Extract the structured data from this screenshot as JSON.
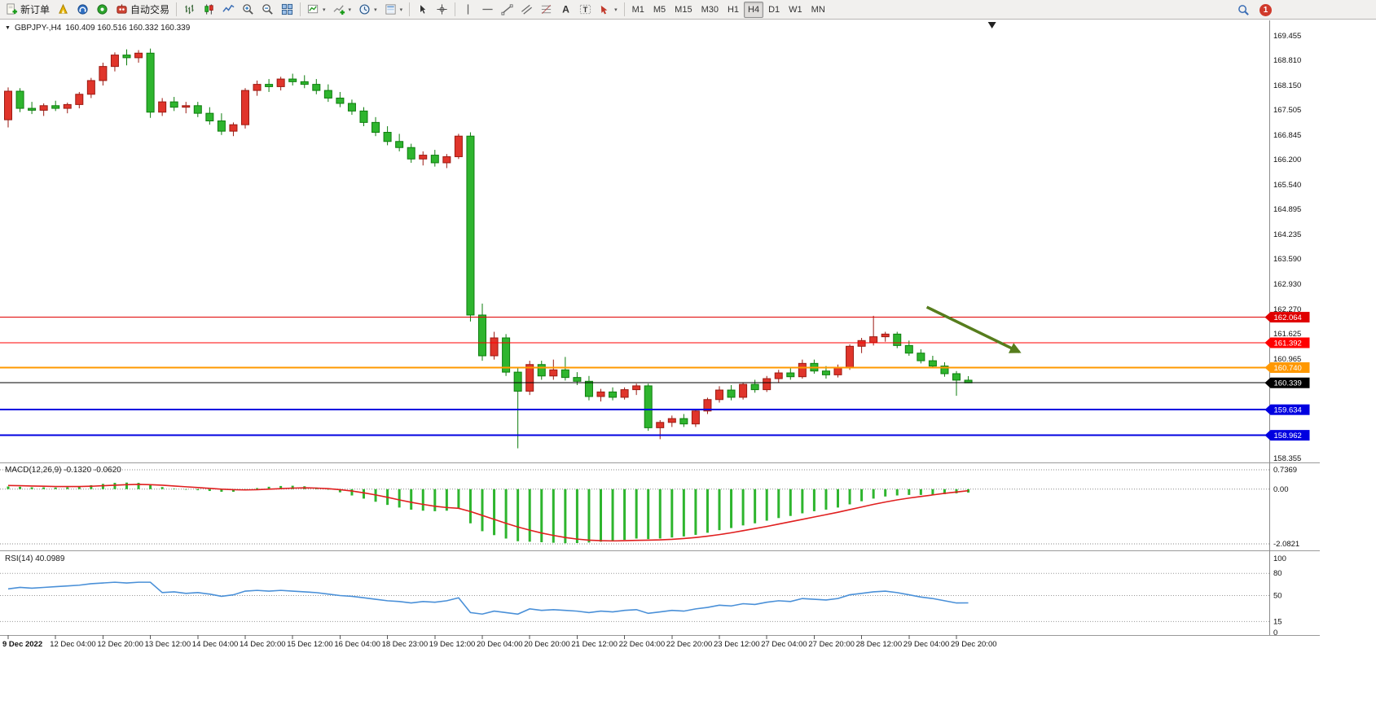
{
  "toolbar": {
    "new_order_label": "新订单",
    "auto_trading_label": "自动交易",
    "timeframes": [
      "M1",
      "M5",
      "M15",
      "M30",
      "H1",
      "H4",
      "D1",
      "W1",
      "MN"
    ],
    "active_timeframe": "H4",
    "notification_badge": "1"
  },
  "chart_header": {
    "collapse_icon": "▼",
    "symbol": "GBPJPY-,H4",
    "ohlc": "160.409 160.516 160.332 160.339"
  },
  "chart_data": {
    "type": "candlestick",
    "symbol": "GBPJPY",
    "timeframe": "H4",
    "colors": {
      "bull": "#e0352b",
      "bull_border": "#9b1a12",
      "bear": "#2eb52e",
      "bear_border": "#0e7d0e",
      "macd_hist": "#2eb52e",
      "macd_signal": "#e01f1f",
      "rsi_line": "#4a90d8",
      "arrow": "#567d1d"
    },
    "price_axis": {
      "min": 158.355,
      "max": 169.455,
      "labels": [
        "169.455",
        "168.810",
        "168.150",
        "167.505",
        "166.845",
        "166.200",
        "165.540",
        "164.895",
        "164.235",
        "163.590",
        "162.930",
        "162.270",
        "161.625",
        "160.965",
        "158.355"
      ]
    },
    "hlines": [
      {
        "price": 162.064,
        "label": "162.064",
        "color": "#e00000",
        "width": 1
      },
      {
        "price": 161.392,
        "label": "161.392",
        "color": "#ff0000",
        "width": 1
      },
      {
        "price": 160.74,
        "label": "160.740",
        "color": "#ff9800",
        "width": 2
      },
      {
        "price": 160.339,
        "label": "160.339",
        "color": "#000000",
        "width": 1,
        "type": "bid"
      },
      {
        "price": 159.634,
        "label": "159.634",
        "color": "#0000e0",
        "width": 2
      },
      {
        "price": 158.962,
        "label": "158.962",
        "color": "#0000e0",
        "width": 2
      }
    ],
    "x_label_step": 4,
    "x_labels": [
      "9 Dec 2022",
      "12 Dec 04:00",
      "12 Dec 20:00",
      "13 Dec 12:00",
      "14 Dec 04:00",
      "14 Dec 20:00",
      "15 Dec 12:00",
      "16 Dec 04:00",
      "18 Dec 23:00",
      "19 Dec 12:00",
      "20 Dec 04:00",
      "20 Dec 20:00",
      "21 Dec 12:00",
      "22 Dec 04:00",
      "22 Dec 20:00",
      "23 Dec 12:00",
      "27 Dec 04:00",
      "27 Dec 20:00",
      "28 Dec 12:00",
      "29 Dec 04:00",
      "29 Dec 20:00"
    ],
    "candles": [
      [
        167.25,
        168.1,
        167.05,
        168.0
      ],
      [
        168.0,
        168.08,
        167.45,
        167.55
      ],
      [
        167.55,
        167.72,
        167.4,
        167.5
      ],
      [
        167.5,
        167.68,
        167.35,
        167.62
      ],
      [
        167.62,
        167.75,
        167.48,
        167.55
      ],
      [
        167.55,
        167.7,
        167.42,
        167.65
      ],
      [
        167.65,
        167.98,
        167.55,
        167.92
      ],
      [
        167.92,
        168.35,
        167.82,
        168.28
      ],
      [
        168.28,
        168.75,
        168.15,
        168.65
      ],
      [
        168.65,
        169.02,
        168.52,
        168.95
      ],
      [
        168.95,
        169.1,
        168.68,
        168.88
      ],
      [
        168.88,
        169.08,
        168.75,
        169.0
      ],
      [
        169.0,
        169.12,
        167.3,
        167.45
      ],
      [
        167.45,
        167.82,
        167.35,
        167.72
      ],
      [
        167.72,
        167.85,
        167.48,
        167.58
      ],
      [
        167.58,
        167.72,
        167.42,
        167.62
      ],
      [
        167.62,
        167.72,
        167.32,
        167.42
      ],
      [
        167.42,
        167.58,
        167.12,
        167.22
      ],
      [
        167.22,
        167.42,
        166.85,
        166.95
      ],
      [
        166.95,
        167.18,
        166.82,
        167.12
      ],
      [
        167.12,
        168.08,
        167.02,
        168.02
      ],
      [
        168.02,
        168.28,
        167.88,
        168.18
      ],
      [
        168.18,
        168.32,
        167.98,
        168.12
      ],
      [
        168.12,
        168.38,
        168.02,
        168.32
      ],
      [
        168.32,
        168.46,
        168.15,
        168.25
      ],
      [
        168.25,
        168.42,
        168.08,
        168.18
      ],
      [
        168.18,
        168.32,
        167.92,
        168.02
      ],
      [
        168.02,
        168.18,
        167.72,
        167.82
      ],
      [
        167.82,
        167.98,
        167.58,
        167.68
      ],
      [
        167.68,
        167.78,
        167.38,
        167.48
      ],
      [
        167.48,
        167.58,
        167.08,
        167.18
      ],
      [
        167.18,
        167.32,
        166.82,
        166.92
      ],
      [
        166.92,
        167.08,
        166.58,
        166.68
      ],
      [
        166.68,
        166.88,
        166.42,
        166.52
      ],
      [
        166.52,
        166.62,
        166.12,
        166.22
      ],
      [
        166.22,
        166.42,
        166.05,
        166.32
      ],
      [
        166.32,
        166.46,
        166.02,
        166.12
      ],
      [
        166.12,
        166.35,
        165.98,
        166.28
      ],
      [
        166.28,
        166.88,
        166.22,
        166.82
      ],
      [
        166.82,
        166.92,
        161.95,
        162.12
      ],
      [
        162.12,
        162.42,
        160.92,
        161.05
      ],
      [
        161.05,
        161.68,
        160.95,
        161.52
      ],
      [
        161.52,
        161.62,
        160.52,
        160.62
      ],
      [
        160.62,
        160.72,
        158.62,
        160.12
      ],
      [
        160.12,
        160.92,
        160.02,
        160.82
      ],
      [
        160.82,
        160.92,
        160.42,
        160.52
      ],
      [
        160.52,
        160.95,
        160.42,
        160.68
      ],
      [
        160.68,
        161.02,
        160.4,
        160.48
      ],
      [
        160.48,
        160.62,
        160.28,
        160.38
      ],
      [
        160.38,
        160.52,
        159.88,
        159.98
      ],
      [
        159.98,
        160.18,
        159.85,
        160.1
      ],
      [
        160.1,
        160.22,
        159.88,
        159.96
      ],
      [
        159.96,
        160.22,
        159.9,
        160.16
      ],
      [
        160.16,
        160.32,
        160.02,
        160.26
      ],
      [
        160.26,
        160.32,
        159.08,
        159.16
      ],
      [
        159.16,
        159.36,
        158.86,
        159.3
      ],
      [
        159.3,
        159.48,
        159.18,
        159.4
      ],
      [
        159.4,
        159.52,
        159.18,
        159.26
      ],
      [
        159.26,
        159.65,
        159.18,
        159.6
      ],
      [
        159.6,
        159.95,
        159.52,
        159.9
      ],
      [
        159.9,
        160.25,
        159.82,
        160.15
      ],
      [
        160.15,
        160.28,
        159.88,
        159.96
      ],
      [
        159.96,
        160.35,
        159.9,
        160.3
      ],
      [
        160.3,
        160.42,
        160.08,
        160.16
      ],
      [
        160.16,
        160.52,
        160.1,
        160.45
      ],
      [
        160.45,
        160.68,
        160.35,
        160.6
      ],
      [
        160.6,
        160.76,
        160.42,
        160.5
      ],
      [
        160.5,
        160.95,
        160.45,
        160.85
      ],
      [
        160.85,
        160.95,
        160.58,
        160.65
      ],
      [
        160.65,
        160.78,
        160.45,
        160.55
      ],
      [
        160.55,
        160.82,
        160.48,
        160.75
      ],
      [
        160.75,
        161.35,
        160.68,
        161.3
      ],
      [
        161.3,
        161.52,
        161.12,
        161.45
      ],
      [
        161.4,
        162.1,
        161.32,
        161.55
      ],
      [
        161.55,
        161.68,
        161.42,
        161.62
      ],
      [
        161.62,
        161.68,
        161.25,
        161.32
      ],
      [
        161.32,
        161.45,
        161.05,
        161.12
      ],
      [
        161.12,
        161.22,
        160.85,
        160.92
      ],
      [
        160.92,
        161.05,
        160.72,
        160.78
      ],
      [
        160.78,
        160.88,
        160.5,
        160.58
      ],
      [
        160.58,
        160.65,
        160.0,
        160.41
      ],
      [
        160.409,
        160.516,
        160.332,
        160.339
      ]
    ],
    "indicators": [
      {
        "name": "MACD",
        "label": "MACD(12,26,9) -0.1320 -0.0620",
        "axis": {
          "max": 0.7369,
          "min": -2.0821,
          "labels": [
            "0.7369",
            "0.00",
            "-2.0821"
          ]
        },
        "histogram": [
          0.1,
          0.09,
          0.07,
          0.07,
          0.06,
          0.07,
          0.1,
          0.15,
          0.2,
          0.24,
          0.25,
          0.24,
          0.16,
          0.08,
          0.02,
          -0.02,
          -0.04,
          -0.07,
          -0.1,
          -0.1,
          -0.04,
          0.04,
          0.09,
          0.12,
          0.13,
          0.11,
          0.06,
          -0.02,
          -0.12,
          -0.24,
          -0.36,
          -0.48,
          -0.6,
          -0.7,
          -0.78,
          -0.82,
          -0.84,
          -0.82,
          -0.75,
          -1.3,
          -1.6,
          -1.75,
          -1.88,
          -1.98,
          -2.0,
          -2.02,
          -2.04,
          -2.06,
          -2.05,
          -2.03,
          -2.0,
          -1.97,
          -1.93,
          -1.88,
          -1.9,
          -1.88,
          -1.84,
          -1.8,
          -1.74,
          -1.66,
          -1.56,
          -1.48,
          -1.38,
          -1.3,
          -1.2,
          -1.1,
          -1.02,
          -0.92,
          -0.84,
          -0.78,
          -0.7,
          -0.58,
          -0.46,
          -0.36,
          -0.28,
          -0.24,
          -0.22,
          -0.22,
          -0.21,
          -0.19,
          -0.16,
          -0.13
        ],
        "signal": [
          0.14,
          0.13,
          0.12,
          0.11,
          0.1,
          0.1,
          0.1,
          0.11,
          0.13,
          0.15,
          0.17,
          0.18,
          0.17,
          0.15,
          0.12,
          0.09,
          0.06,
          0.03,
          0.0,
          -0.02,
          -0.03,
          -0.02,
          0.0,
          0.02,
          0.04,
          0.05,
          0.04,
          0.02,
          -0.02,
          -0.07,
          -0.14,
          -0.22,
          -0.31,
          -0.41,
          -0.5,
          -0.58,
          -0.65,
          -0.7,
          -0.73,
          -0.85,
          -1.0,
          -1.15,
          -1.3,
          -1.44,
          -1.56,
          -1.67,
          -1.76,
          -1.84,
          -1.9,
          -1.94,
          -1.96,
          -1.97,
          -1.96,
          -1.95,
          -1.94,
          -1.93,
          -1.91,
          -1.88,
          -1.84,
          -1.79,
          -1.73,
          -1.66,
          -1.58,
          -1.5,
          -1.42,
          -1.33,
          -1.24,
          -1.15,
          -1.06,
          -0.97,
          -0.88,
          -0.78,
          -0.68,
          -0.58,
          -0.49,
          -0.41,
          -0.34,
          -0.28,
          -0.22,
          -0.16,
          -0.11,
          -0.06
        ]
      },
      {
        "name": "RSI",
        "label": "RSI(14) 40.0989",
        "levels": [
          80,
          50,
          15
        ],
        "axis_labels": [
          "100",
          "80",
          "50",
          "15",
          "0"
        ],
        "values": [
          59,
          61,
          60,
          61,
          62,
          63,
          64,
          66,
          67,
          68,
          67,
          68,
          68,
          54,
          55,
          53,
          54,
          52,
          49,
          51,
          56,
          57,
          56,
          57,
          56,
          55,
          54,
          52,
          50,
          49,
          47,
          45,
          43,
          42,
          40,
          42,
          41,
          43,
          47,
          27,
          25,
          29,
          27,
          25,
          32,
          30,
          31,
          30,
          29,
          27,
          29,
          28,
          30,
          31,
          26,
          28,
          30,
          29,
          32,
          34,
          37,
          36,
          39,
          38,
          41,
          43,
          42,
          46,
          45,
          44,
          46,
          51,
          53,
          55,
          56,
          54,
          51,
          48,
          46,
          43,
          40,
          40.1
        ]
      }
    ],
    "annotations": [
      {
        "type": "arrow",
        "color": "#567d1d",
        "from_bar": 77.5,
        "from_price": 162.33,
        "to_bar": 85.3,
        "to_price": 161.15
      }
    ],
    "shift_marker_bar": 83
  }
}
